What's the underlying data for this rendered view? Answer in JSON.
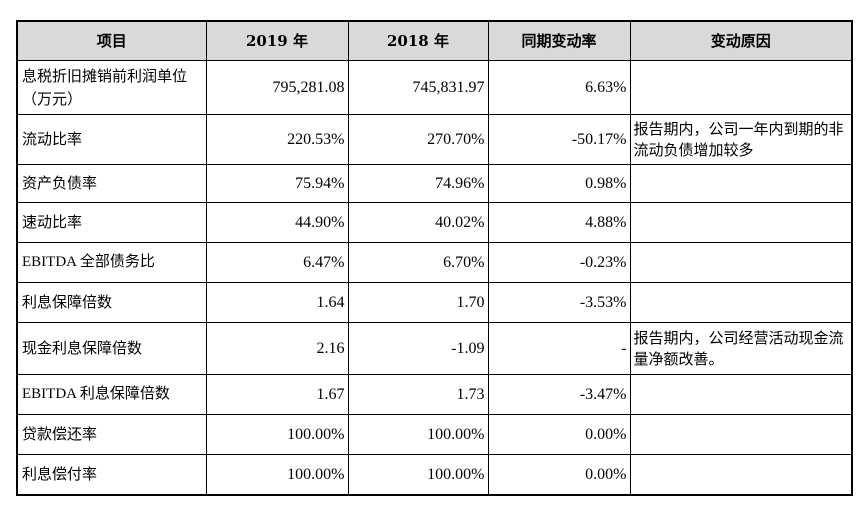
{
  "table": {
    "headers": [
      "项目",
      "2019 年",
      "2018 年",
      "同期变动率",
      "变动原因"
    ],
    "rows": [
      {
        "item": "息税折旧摊销前利润单位（万元）",
        "y2019": "795,281.08",
        "y2018": "745,831.97",
        "change": "6.63%",
        "reason": ""
      },
      {
        "item": "流动比率",
        "y2019": "220.53%",
        "y2018": "270.70%",
        "change": "-50.17%",
        "reason": "报告期内，公司一年内到期的非流动负债增加较多"
      },
      {
        "item": "资产负债率",
        "y2019": "75.94%",
        "y2018": "74.96%",
        "change": "0.98%",
        "reason": ""
      },
      {
        "item": "速动比率",
        "y2019": "44.90%",
        "y2018": "40.02%",
        "change": "4.88%",
        "reason": ""
      },
      {
        "item": "EBITDA 全部债务比",
        "y2019": "6.47%",
        "y2018": "6.70%",
        "change": "-0.23%",
        "reason": ""
      },
      {
        "item": "利息保障倍数",
        "y2019": "1.64",
        "y2018": "1.70",
        "change": "-3.53%",
        "reason": ""
      },
      {
        "item": "现金利息保障倍数",
        "y2019": "2.16",
        "y2018": "-1.09",
        "change": "-",
        "reason": "报告期内，公司经营活动现金流量净额改善。"
      },
      {
        "item": "EBITDA 利息保障倍数",
        "y2019": "1.67",
        "y2018": "1.73",
        "change": "-3.47%",
        "reason": ""
      },
      {
        "item": "贷款偿还率",
        "y2019": "100.00%",
        "y2018": "100.00%",
        "change": "0.00%",
        "reason": ""
      },
      {
        "item": "利息偿付率",
        "y2019": "100.00%",
        "y2018": "100.00%",
        "change": "0.00%",
        "reason": ""
      }
    ]
  }
}
